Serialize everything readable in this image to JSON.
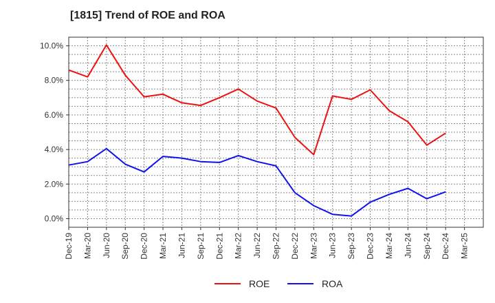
{
  "chart_data": {
    "type": "line",
    "title": "[1815]  Trend of ROE and ROA",
    "xlabel": "",
    "ylabel": "",
    "categories": [
      "Dec-19",
      "Mar-20",
      "Jun-20",
      "Sep-20",
      "Dec-20",
      "Mar-21",
      "Jun-21",
      "Sep-21",
      "Dec-21",
      "Mar-22",
      "Jun-22",
      "Sep-22",
      "Dec-22",
      "Mar-23",
      "Jun-23",
      "Sep-23",
      "Dec-23",
      "Mar-24",
      "Jun-24",
      "Sep-24",
      "Dec-24",
      "Mar-25"
    ],
    "y_tick_labels": [
      "0.0%",
      "2.0%",
      "4.0%",
      "6.0%",
      "8.0%",
      "10.0%"
    ],
    "y_ticks": [
      0,
      2,
      4,
      6,
      8,
      10
    ],
    "ylim": [
      -0.5,
      10.5
    ],
    "grid": true,
    "legend_position": "bottom-center",
    "series": [
      {
        "name": "ROE",
        "color": "#ee1111",
        "values": [
          8.6,
          8.2,
          10.05,
          8.3,
          7.05,
          7.2,
          6.7,
          6.55,
          7.0,
          7.5,
          6.8,
          6.4,
          4.7,
          3.7,
          7.1,
          6.9,
          7.45,
          6.25,
          5.6,
          4.25,
          4.95,
          null
        ]
      },
      {
        "name": "ROA",
        "color": "#1111ee",
        "values": [
          3.1,
          3.3,
          4.05,
          3.15,
          2.7,
          3.6,
          3.5,
          3.3,
          3.25,
          3.65,
          3.3,
          3.05,
          1.5,
          0.75,
          0.25,
          0.15,
          0.95,
          1.4,
          1.75,
          1.15,
          1.55,
          null
        ]
      }
    ]
  }
}
